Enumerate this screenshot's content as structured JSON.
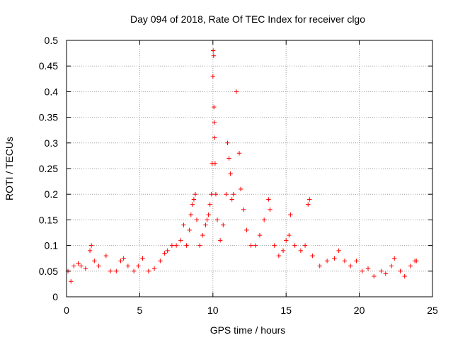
{
  "chart_data": {
    "type": "scatter",
    "title": "Day 094 of 2018, Rate Of TEC Index for receiver clgo",
    "xlabel": "GPS time / hours",
    "ylabel": "ROTI / TECUs",
    "xlim": [
      0,
      25
    ],
    "ylim": [
      0,
      0.5
    ],
    "x_ticks": [
      "0",
      "5",
      "10",
      "15",
      "20",
      "25"
    ],
    "y_ticks": [
      "0",
      "0.05",
      "0.1",
      "0.15",
      "0.2",
      "0.25",
      "0.3",
      "0.35",
      "0.4",
      "0.45",
      "0.5"
    ],
    "grid": true,
    "marker": "+",
    "color": "#ff0000",
    "series": [
      {
        "points": [
          [
            0.1,
            0.05
          ],
          [
            0.3,
            0.03
          ],
          [
            0.5,
            0.06
          ],
          [
            0.8,
            0.065
          ],
          [
            1.0,
            0.06
          ],
          [
            1.3,
            0.055
          ],
          [
            1.6,
            0.09
          ],
          [
            1.7,
            0.1
          ],
          [
            1.9,
            0.07
          ],
          [
            2.2,
            0.06
          ],
          [
            2.7,
            0.08
          ],
          [
            3.0,
            0.05
          ],
          [
            3.4,
            0.05
          ],
          [
            3.7,
            0.07
          ],
          [
            3.9,
            0.075
          ],
          [
            4.2,
            0.06
          ],
          [
            4.6,
            0.05
          ],
          [
            4.9,
            0.06
          ],
          [
            5.2,
            0.075
          ],
          [
            5.6,
            0.05
          ],
          [
            6.0,
            0.055
          ],
          [
            6.4,
            0.07
          ],
          [
            6.7,
            0.085
          ],
          [
            6.9,
            0.09
          ],
          [
            7.2,
            0.1
          ],
          [
            7.5,
            0.1
          ],
          [
            7.8,
            0.11
          ],
          [
            8.0,
            0.14
          ],
          [
            8.2,
            0.1
          ],
          [
            8.4,
            0.13
          ],
          [
            8.5,
            0.16
          ],
          [
            8.6,
            0.18
          ],
          [
            8.7,
            0.19
          ],
          [
            8.8,
            0.2
          ],
          [
            8.9,
            0.15
          ],
          [
            9.1,
            0.1
          ],
          [
            9.3,
            0.12
          ],
          [
            9.5,
            0.14
          ],
          [
            9.6,
            0.15
          ],
          [
            9.7,
            0.16
          ],
          [
            9.8,
            0.18
          ],
          [
            9.9,
            0.2
          ],
          [
            9.95,
            0.26
          ],
          [
            10.0,
            0.43
          ],
          [
            10.02,
            0.48
          ],
          [
            10.05,
            0.47
          ],
          [
            10.07,
            0.37
          ],
          [
            10.1,
            0.34
          ],
          [
            10.12,
            0.31
          ],
          [
            10.15,
            0.26
          ],
          [
            10.2,
            0.2
          ],
          [
            10.3,
            0.15
          ],
          [
            10.5,
            0.11
          ],
          [
            10.7,
            0.14
          ],
          [
            10.9,
            0.2
          ],
          [
            11.0,
            0.3
          ],
          [
            11.1,
            0.27
          ],
          [
            11.2,
            0.24
          ],
          [
            11.3,
            0.19
          ],
          [
            11.4,
            0.2
          ],
          [
            11.6,
            0.4
          ],
          [
            11.8,
            0.28
          ],
          [
            11.9,
            0.21
          ],
          [
            12.1,
            0.17
          ],
          [
            12.3,
            0.13
          ],
          [
            12.6,
            0.1
          ],
          [
            12.9,
            0.1
          ],
          [
            13.2,
            0.12
          ],
          [
            13.5,
            0.15
          ],
          [
            13.8,
            0.19
          ],
          [
            13.9,
            0.17
          ],
          [
            14.2,
            0.1
          ],
          [
            14.5,
            0.08
          ],
          [
            14.8,
            0.09
          ],
          [
            15.0,
            0.11
          ],
          [
            15.2,
            0.12
          ],
          [
            15.3,
            0.16
          ],
          [
            15.6,
            0.1
          ],
          [
            16.0,
            0.09
          ],
          [
            16.3,
            0.1
          ],
          [
            16.5,
            0.18
          ],
          [
            16.6,
            0.19
          ],
          [
            16.8,
            0.08
          ],
          [
            17.3,
            0.06
          ],
          [
            17.8,
            0.07
          ],
          [
            18.3,
            0.075
          ],
          [
            18.6,
            0.09
          ],
          [
            19.0,
            0.07
          ],
          [
            19.4,
            0.06
          ],
          [
            19.8,
            0.07
          ],
          [
            20.2,
            0.05
          ],
          [
            20.6,
            0.055
          ],
          [
            21.0,
            0.04
          ],
          [
            21.5,
            0.05
          ],
          [
            21.8,
            0.045
          ],
          [
            22.2,
            0.06
          ],
          [
            22.4,
            0.075
          ],
          [
            22.8,
            0.05
          ],
          [
            23.1,
            0.04
          ],
          [
            23.5,
            0.06
          ],
          [
            23.8,
            0.07
          ],
          [
            23.9,
            0.07
          ]
        ]
      }
    ]
  }
}
